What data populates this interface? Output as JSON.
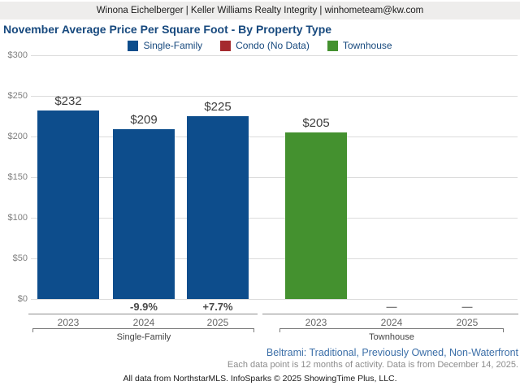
{
  "header": {
    "contact_line": "Winona Eichelberger | Keller Williams Realty Integrity | winhometeam@kw.com"
  },
  "title": "November Average Price Per Square Foot - By Property Type",
  "footer": {
    "filters_line": "Beltrami: Traditional, Previously Owned, Non-Waterfront",
    "data_note": "Each data point is 12 months of activity. Data is from December 14, 2025.",
    "attribution": "All data from NorthstarMLS. InfoSparks © 2025 ShowingTime Plus, LLC."
  },
  "colors": {
    "single_family": "#0d4d8c",
    "condo": "#a52a2e",
    "townhouse": "#44912f",
    "title_text": "#17497e",
    "gridline": "#dcdcdc",
    "header_bg": "#eeedec"
  },
  "chart_data": {
    "type": "bar",
    "title": "November Average Price Per Square Foot - By Property Type",
    "ylabel": "",
    "ylim": [
      0,
      300
    ],
    "ytick_step": 50,
    "ytick_labels": [
      "$300",
      "$250",
      "$200",
      "$150",
      "$100",
      "$50",
      "$0"
    ],
    "grid": true,
    "legend_position": "top-center",
    "legend": [
      {
        "label": "Single-Family",
        "color": "#0d4d8c"
      },
      {
        "label": "Condo (No Data)",
        "color": "#a52a2e"
      },
      {
        "label": "Townhouse",
        "color": "#44912f"
      }
    ],
    "groups": [
      {
        "name": "Single-Family",
        "color": "#0d4d8c",
        "categories": [
          "2023",
          "2024",
          "2025"
        ],
        "values": [
          232,
          209,
          225
        ],
        "value_labels": [
          "$232",
          "$209",
          "$225"
        ],
        "change_labels": [
          "",
          "-9.9%",
          "+7.7%"
        ]
      },
      {
        "name": "Townhouse",
        "color": "#44912f",
        "categories": [
          "2023",
          "2024",
          "2025"
        ],
        "values": [
          205,
          null,
          null
        ],
        "value_labels": [
          "$205",
          "",
          ""
        ],
        "change_labels": [
          "",
          "—",
          "—"
        ]
      }
    ]
  }
}
